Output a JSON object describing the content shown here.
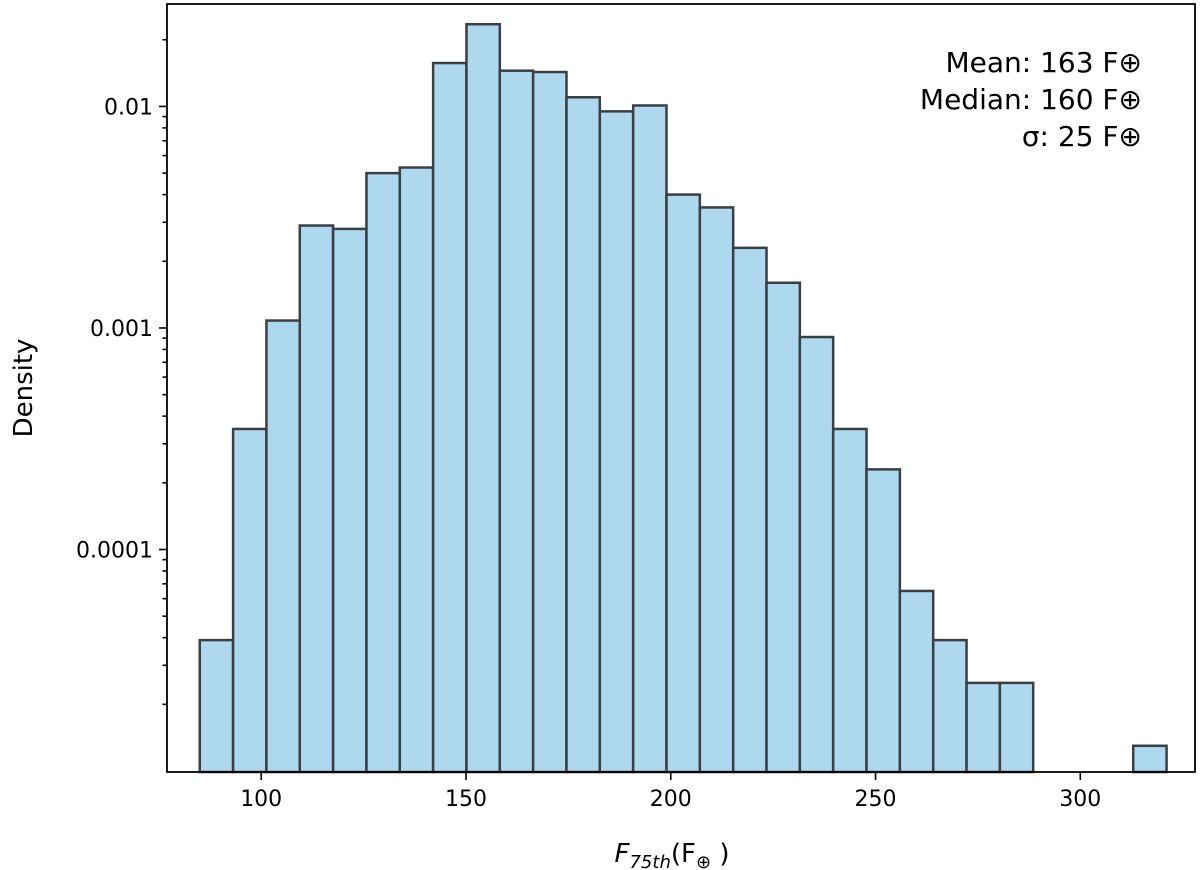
{
  "chart_data": {
    "type": "bar",
    "histogram": true,
    "xlabel": {
      "main": "F",
      "sub": "75th",
      "unit_open": "(F",
      "unit_sub": "⊕",
      "unit_close": " )"
    },
    "ylabel": "Density",
    "xlim": [
      77,
      328
    ],
    "ylim": [
      9.9e-06,
      0.029
    ],
    "yscale": "log",
    "x_ticks": [
      100,
      150,
      200,
      250,
      300
    ],
    "y_ticks": [
      {
        "value": 0.0001,
        "label": "0.0001"
      },
      {
        "value": 0.001,
        "label": "0.001"
      },
      {
        "value": 0.01,
        "label": "0.01"
      }
    ],
    "bin_edges": [
      85,
      93.14,
      101.28,
      109.42,
      117.56,
      125.7,
      133.84,
      141.98,
      150.12,
      158.26,
      166.4,
      174.54,
      182.68,
      190.82,
      198.96,
      207.1,
      215.24,
      223.38,
      231.52,
      239.66,
      247.8,
      255.94,
      264.08,
      272.22,
      280.36,
      288.5,
      296.64,
      304.78,
      312.92,
      321.06
    ],
    "values": [
      3.9e-05,
      0.00035,
      0.00108,
      0.0029,
      0.0028,
      0.005,
      0.0053,
      0.0157,
      0.0235,
      0.0145,
      0.0143,
      0.011,
      0.0095,
      0.0101,
      0.004,
      0.0035,
      0.0023,
      0.0016,
      0.00091,
      0.00035,
      0.00023,
      6.5e-05,
      3.9e-05,
      2.5e-05,
      2.5e-05,
      0,
      0,
      0,
      1.3e-05
    ],
    "annotation": {
      "lines": [
        "Mean: 163 F⊕",
        "Median: 160 F⊕",
        "σ: 25 F⊕"
      ],
      "placement": "top-right"
    },
    "colors": {
      "bar_fill": "#add8ee",
      "bar_edge": "#3a3f44"
    }
  }
}
